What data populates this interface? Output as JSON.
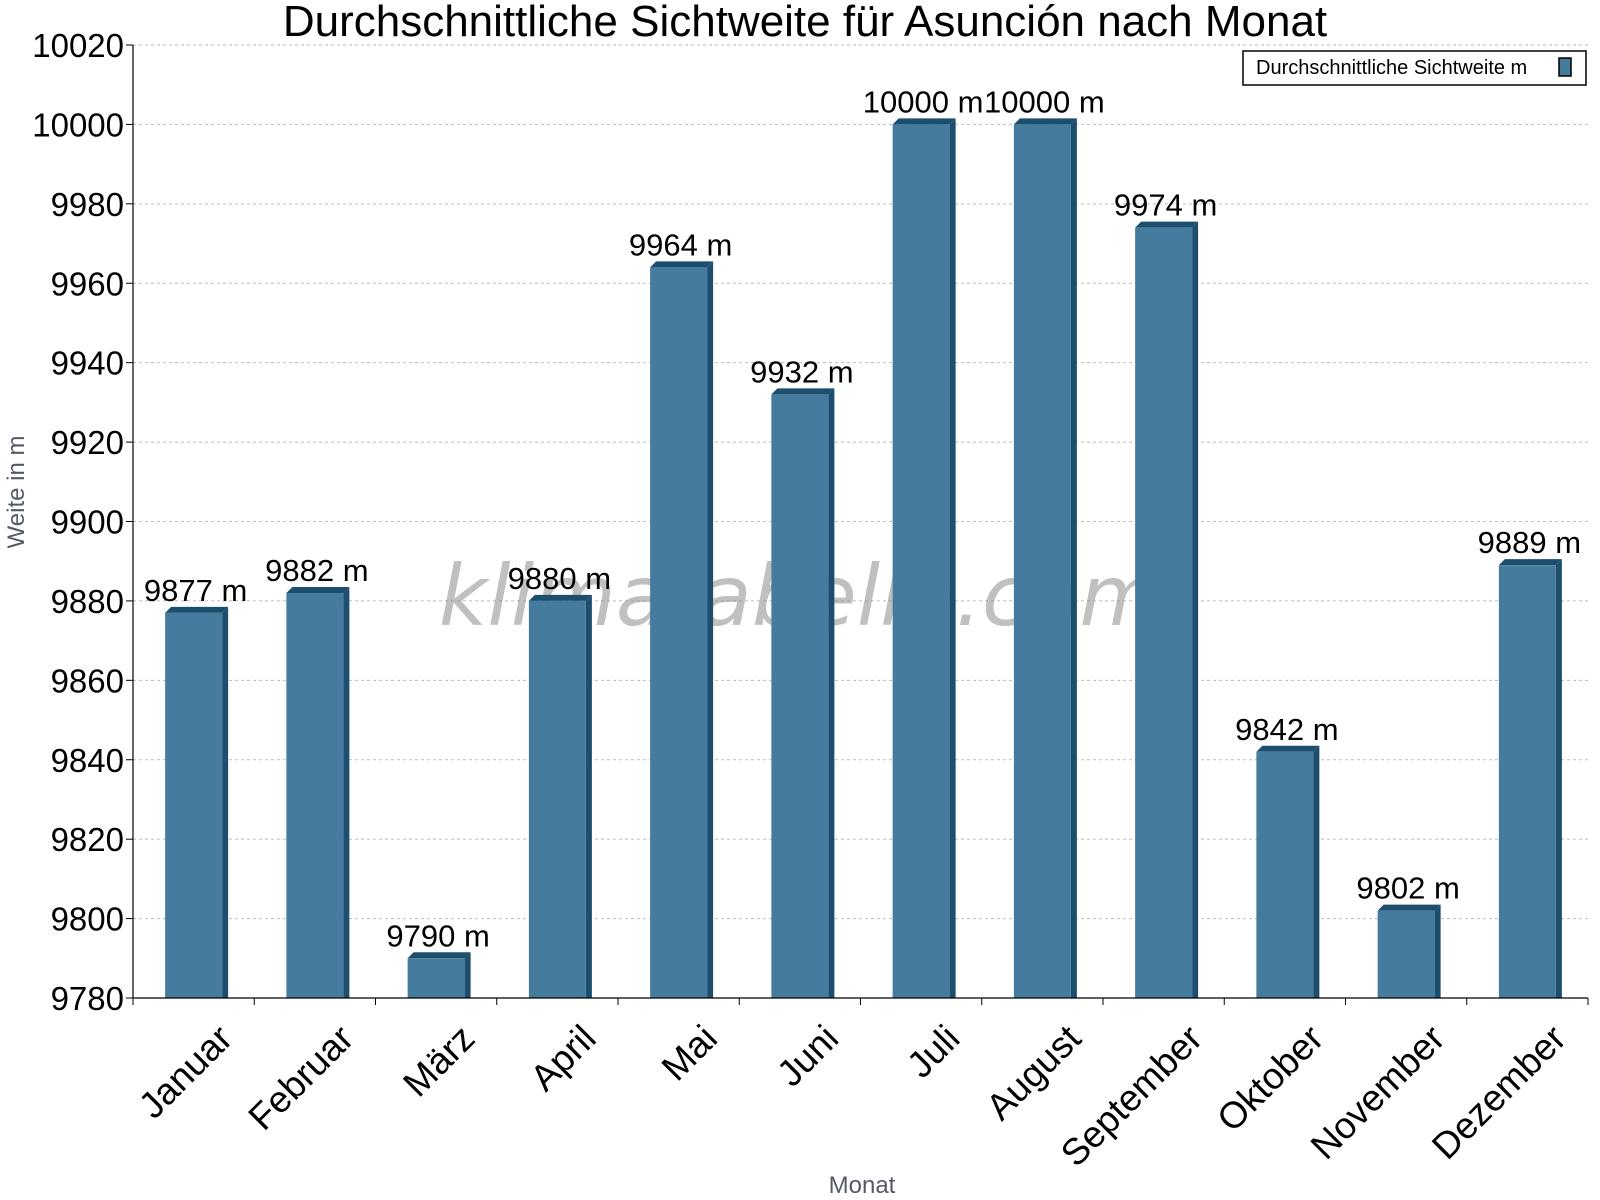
{
  "watermark": "klimatabelle.com",
  "colors": {
    "bar_face": "#457b9d",
    "bar_side": "#1d4e6e",
    "bar_top": "#1d4e6e",
    "grid": "#bbbbbb",
    "axis": "#000000"
  },
  "chart_data": {
    "type": "bar",
    "title": "Durchschnittliche Sichtweite für Asunción nach Monat",
    "xlabel": "Monat",
    "ylabel": "Weite in m",
    "ylim": [
      9780,
      10020
    ],
    "ytick_step": 20,
    "grid": true,
    "legend_position": "top-right",
    "categories": [
      "Januar",
      "Februar",
      "März",
      "April",
      "Mai",
      "Juni",
      "Juli",
      "August",
      "September",
      "Oktober",
      "November",
      "Dezember"
    ],
    "series": [
      {
        "name": "Durchschnittliche Sichtweite m",
        "values": [
          9877,
          9882,
          9790,
          9880,
          9964,
          9932,
          10000,
          10000,
          9974,
          9842,
          9802,
          9889
        ],
        "labels": [
          "9877 m",
          "9882 m",
          "9790 m",
          "9880 m",
          "9964 m",
          "9932 m",
          "10000 m",
          "10000 m",
          "9974 m",
          "9842 m",
          "9802 m",
          "9889 m"
        ]
      }
    ]
  }
}
